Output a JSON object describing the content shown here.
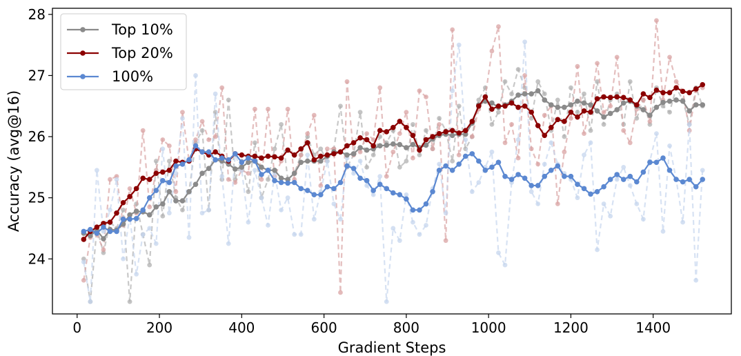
{
  "chart_data": {
    "type": "line",
    "xlabel": "Gradient Steps",
    "ylabel": "Accuracy (avg@16)",
    "xlim": [
      -60,
      1590
    ],
    "ylim": [
      23.1,
      28.1
    ],
    "xticks": [
      0,
      200,
      400,
      600,
      800,
      1000,
      1200,
      1400
    ],
    "yticks": [
      24,
      25,
      26,
      27,
      28
    ],
    "legend_position": "top-left",
    "x": [
      16,
      32,
      48,
      64,
      80,
      96,
      112,
      128,
      144,
      160,
      176,
      192,
      208,
      224,
      240,
      256,
      272,
      288,
      304,
      320,
      336,
      352,
      368,
      384,
      400,
      416,
      432,
      448,
      464,
      480,
      496,
      512,
      528,
      544,
      560,
      576,
      592,
      608,
      624,
      640,
      656,
      672,
      688,
      704,
      720,
      736,
      752,
      768,
      784,
      800,
      816,
      832,
      848,
      864,
      880,
      896,
      912,
      928,
      944,
      960,
      976,
      992,
      1008,
      1024,
      1040,
      1056,
      1072,
      1088,
      1104,
      1120,
      1136,
      1152,
      1168,
      1184,
      1200,
      1216,
      1232,
      1248,
      1264,
      1280,
      1296,
      1312,
      1328,
      1344,
      1360,
      1376,
      1392,
      1408,
      1424,
      1440,
      1456,
      1472,
      1488,
      1504,
      1520
    ],
    "series": [
      {
        "name": "Top 10%",
        "color": "#8a8a8a",
        "values": [
          24.42,
          24.38,
          24.47,
          24.33,
          24.48,
          24.47,
          24.57,
          24.72,
          24.78,
          24.77,
          24.72,
          24.85,
          24.9,
          25.1,
          24.95,
          24.95,
          25.1,
          25.22,
          25.4,
          25.48,
          25.62,
          25.6,
          25.55,
          25.47,
          25.5,
          25.58,
          25.6,
          25.5,
          25.45,
          25.45,
          25.32,
          25.3,
          25.4,
          25.58,
          25.6,
          25.6,
          25.6,
          25.68,
          25.75,
          25.75,
          25.7,
          25.72,
          25.82,
          25.78,
          25.8,
          25.85,
          25.86,
          25.88,
          25.87,
          25.82,
          25.87,
          25.82,
          25.86,
          25.96,
          26.02,
          26.04,
          26.02,
          26.04,
          26.04,
          26.22,
          26.52,
          26.58,
          26.55,
          26.48,
          26.52,
          26.58,
          26.68,
          26.7,
          26.7,
          26.75,
          26.6,
          26.52,
          26.48,
          26.48,
          26.52,
          26.58,
          26.55,
          26.52,
          26.42,
          26.32,
          26.38,
          26.44,
          26.55,
          26.58,
          26.5,
          26.44,
          26.35,
          26.48,
          26.56,
          26.58,
          26.6,
          26.58,
          26.42,
          26.52,
          26.52
        ]
      },
      {
        "name": "Top 20%",
        "color": "#8b0000",
        "values": [
          24.32,
          24.45,
          24.52,
          24.58,
          24.6,
          24.75,
          24.92,
          25.02,
          25.15,
          25.32,
          25.3,
          25.4,
          25.42,
          25.45,
          25.6,
          25.58,
          25.6,
          25.8,
          25.75,
          25.7,
          25.75,
          25.68,
          25.6,
          25.72,
          25.7,
          25.68,
          25.68,
          25.65,
          25.68,
          25.67,
          25.65,
          25.78,
          25.7,
          25.8,
          25.9,
          25.62,
          25.68,
          25.7,
          25.72,
          25.75,
          25.85,
          25.9,
          25.98,
          25.95,
          25.85,
          26.1,
          26.08,
          26.15,
          26.25,
          26.15,
          26.02,
          25.78,
          25.95,
          26.0,
          26.05,
          26.08,
          26.1,
          26.06,
          26.1,
          26.25,
          26.5,
          26.65,
          26.45,
          26.5,
          26.5,
          26.55,
          26.48,
          26.5,
          26.4,
          26.18,
          26.02,
          26.15,
          26.28,
          26.25,
          26.4,
          26.32,
          26.42,
          26.4,
          26.62,
          26.65,
          26.64,
          26.65,
          26.64,
          26.6,
          26.52,
          26.7,
          26.64,
          26.76,
          26.72,
          26.72,
          26.8,
          26.74,
          26.72,
          26.78,
          26.85
        ]
      },
      {
        "name": "100%",
        "color": "#5b88d1",
        "values": [
          24.45,
          24.48,
          24.42,
          24.52,
          24.45,
          24.45,
          24.65,
          24.65,
          24.66,
          24.8,
          25.0,
          25.12,
          25.28,
          25.25,
          25.52,
          25.55,
          25.62,
          25.85,
          25.75,
          25.75,
          25.62,
          25.65,
          25.62,
          25.72,
          25.58,
          25.65,
          25.6,
          25.38,
          25.45,
          25.28,
          25.25,
          25.24,
          25.25,
          25.15,
          25.12,
          25.05,
          25.05,
          25.18,
          25.15,
          25.25,
          25.52,
          25.48,
          25.32,
          25.28,
          25.12,
          25.22,
          25.15,
          25.08,
          25.05,
          24.98,
          24.8,
          24.8,
          24.9,
          25.1,
          25.45,
          25.52,
          25.45,
          25.55,
          25.68,
          25.72,
          25.6,
          25.45,
          25.5,
          25.58,
          25.35,
          25.3,
          25.38,
          25.32,
          25.2,
          25.2,
          25.35,
          25.45,
          25.52,
          25.35,
          25.35,
          25.22,
          25.15,
          25.06,
          25.1,
          25.18,
          25.3,
          25.38,
          25.3,
          25.35,
          25.26,
          25.42,
          25.58,
          25.58,
          25.65,
          25.45,
          25.3,
          25.26,
          25.3,
          25.18,
          25.3
        ]
      }
    ],
    "raw_series": [
      {
        "name": "Top 10% (raw)",
        "color": "#b0b0b0",
        "values": [
          24.0,
          23.3,
          24.5,
          24.1,
          24.6,
          24.5,
          24.8,
          23.3,
          24.9,
          24.4,
          23.9,
          25.6,
          24.7,
          25.6,
          25.0,
          24.8,
          25.1,
          25.9,
          26.1,
          24.8,
          26.4,
          25.3,
          26.6,
          25.3,
          25.6,
          25.1,
          25.9,
          25.0,
          25.3,
          25.8,
          26.2,
          25.3,
          25.4,
          25.7,
          26.0,
          25.7,
          25.8,
          25.6,
          25.8,
          26.5,
          25.5,
          25.7,
          26.4,
          25.5,
          25.7,
          26.0,
          25.9,
          26.1,
          25.5,
          25.6,
          26.2,
          25.7,
          26.1,
          25.8,
          26.3,
          26.1,
          25.6,
          26.5,
          25.8,
          26.0,
          26.6,
          26.8,
          26.2,
          26.4,
          26.9,
          26.7,
          27.1,
          26.8,
          26.3,
          26.9,
          26.7,
          26.1,
          26.6,
          26.0,
          26.8,
          26.4,
          26.7,
          26.1,
          26.9,
          26.2,
          26.6,
          26.7,
          26.2,
          26.9,
          26.3,
          26.6,
          26.2,
          26.8,
          26.5,
          26.4,
          26.8,
          26.6,
          26.2,
          26.8,
          26.5
        ]
      },
      {
        "name": "Top 20% (raw)",
        "color": "#d9a3a3",
        "values": [
          23.65,
          24.35,
          24.4,
          24.15,
          25.3,
          25.35,
          24.55,
          25.15,
          24.75,
          26.1,
          24.85,
          25.45,
          25.95,
          25.85,
          25.1,
          26.4,
          25.6,
          25.95,
          26.25,
          25.95,
          26.0,
          26.8,
          25.3,
          25.25,
          25.45,
          25.4,
          26.45,
          25.3,
          26.45,
          25.35,
          25.6,
          26.45,
          25.3,
          25.7,
          26.05,
          26.35,
          25.2,
          25.8,
          25.8,
          23.45,
          26.9,
          25.7,
          25.75,
          26.05,
          25.95,
          26.8,
          25.35,
          25.75,
          26.05,
          26.4,
          25.65,
          26.75,
          26.65,
          25.8,
          26.2,
          24.3,
          27.75,
          25.7,
          26.05,
          26.0,
          26.45,
          26.65,
          27.4,
          27.8,
          25.9,
          26.2,
          25.65,
          27.0,
          25.8,
          25.55,
          26.35,
          26.5,
          24.9,
          25.75,
          26.3,
          27.15,
          26.05,
          26.5,
          27.2,
          26.4,
          26.5,
          27.3,
          26.1,
          25.9,
          26.45,
          26.6,
          26.25,
          27.9,
          26.6,
          27.3,
          26.9,
          26.75,
          26.1,
          26.75,
          26.8
        ]
      },
      {
        "name": "100% (raw)",
        "color": "#c6d6ee",
        "values": [
          23.95,
          23.3,
          25.45,
          24.45,
          24.8,
          25.3,
          24.0,
          24.7,
          23.75,
          24.4,
          24.5,
          24.25,
          25.8,
          24.75,
          25.4,
          26.3,
          24.35,
          27.0,
          24.75,
          24.8,
          26.7,
          25.35,
          24.25,
          25.7,
          25.45,
          24.6,
          25.45,
          25.0,
          24.55,
          25.4,
          24.8,
          25.0,
          24.4,
          24.4,
          25.7,
          24.65,
          25.1,
          25.6,
          24.9,
          24.65,
          25.65,
          25.4,
          25.6,
          25.2,
          25.05,
          25.35,
          23.3,
          24.5,
          24.3,
          25.05,
          24.6,
          24.4,
          24.55,
          25.15,
          25.55,
          24.75,
          26.75,
          27.5,
          25.95,
          25.1,
          25.25,
          25.5,
          25.75,
          24.1,
          23.9,
          25.25,
          25.95,
          27.55,
          25.1,
          24.9,
          25.55,
          25.9,
          25.55,
          25.4,
          25.3,
          25.0,
          25.7,
          25.9,
          24.15,
          24.9,
          24.7,
          25.3,
          25.5,
          25.2,
          24.9,
          24.65,
          25.6,
          26.05,
          24.45,
          25.85,
          25.3,
          24.6,
          26.2,
          23.65,
          25.45
        ]
      }
    ]
  }
}
